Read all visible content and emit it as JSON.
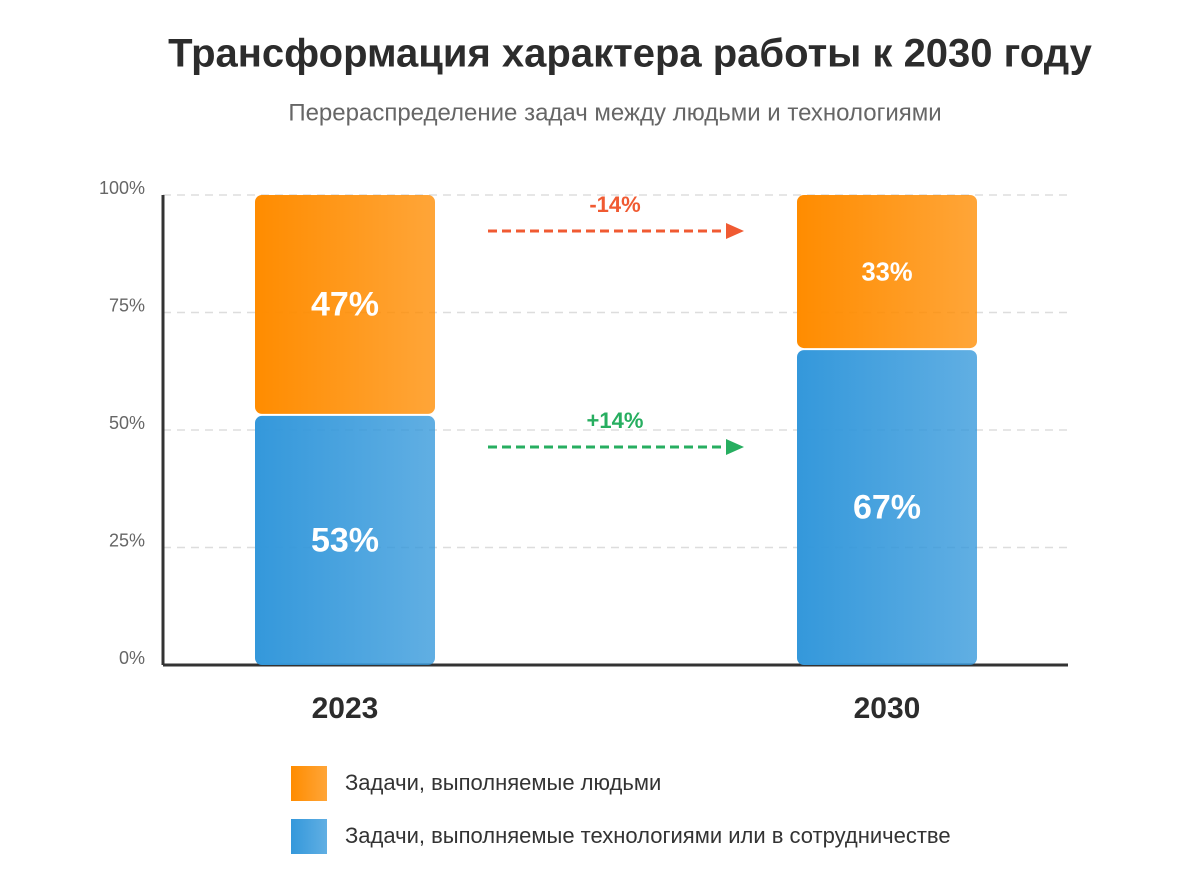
{
  "chart_data": {
    "type": "stacked_bar",
    "title": "Трансформация характера работы к 2030 году",
    "subtitle": "Перераспределение задач между людьми и технологиями",
    "categories": [
      "2023",
      "2030"
    ],
    "series": [
      {
        "name": "Задачи, выполняемые технологиями или в сотрудничестве",
        "color": "#3498db",
        "values": [
          53,
          67
        ],
        "value_labels": [
          "53%",
          "67%"
        ]
      },
      {
        "name": "Задачи, выполняемые людьми",
        "color": "#ff8c00",
        "values": [
          47,
          33
        ],
        "value_labels": [
          "47%",
          "33%"
        ]
      }
    ],
    "ylim": [
      0,
      100
    ],
    "yticks": [
      {
        "value": 0,
        "label": "0%"
      },
      {
        "value": 25,
        "label": "25%"
      },
      {
        "value": 50,
        "label": "50%"
      },
      {
        "value": 75,
        "label": "75%"
      },
      {
        "value": 100,
        "label": "100%"
      }
    ],
    "grid": true,
    "annotations": [
      {
        "label": "-14%",
        "color": "#f05a32"
      },
      {
        "label": "+14%",
        "color": "#27ae60"
      }
    ]
  }
}
